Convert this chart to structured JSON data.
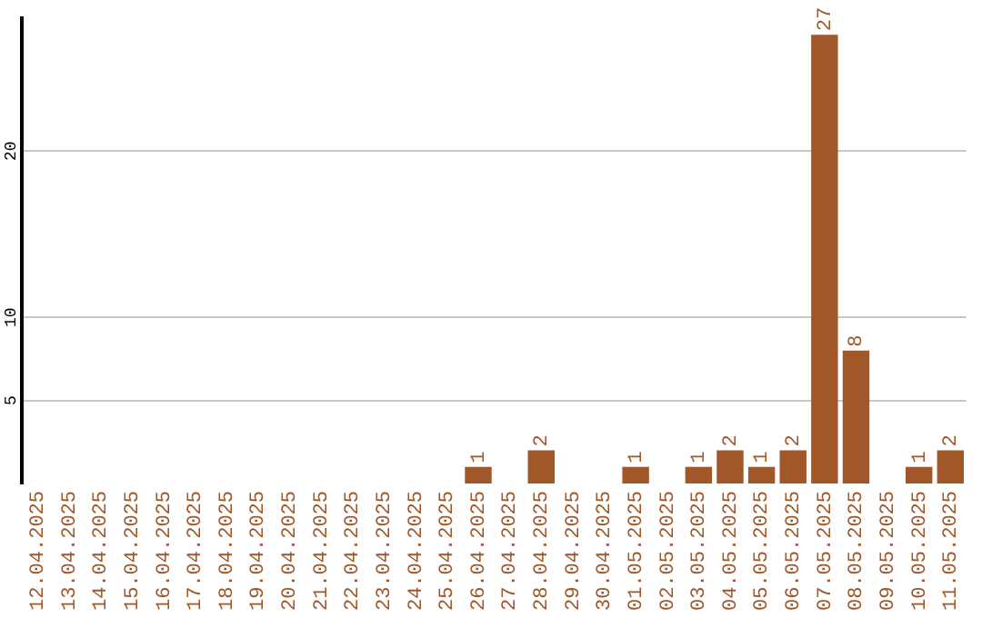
{
  "chart_data": {
    "type": "bar",
    "categories": [
      "12.04.2025",
      "13.04.2025",
      "14.04.2025",
      "15.04.2025",
      "16.04.2025",
      "17.04.2025",
      "18.04.2025",
      "19.04.2025",
      "20.04.2025",
      "21.04.2025",
      "22.04.2025",
      "23.04.2025",
      "24.04.2025",
      "25.04.2025",
      "26.04.2025",
      "27.04.2025",
      "28.04.2025",
      "29.04.2025",
      "30.04.2025",
      "01.05.2025",
      "02.05.2025",
      "03.05.2025",
      "04.05.2025",
      "05.05.2025",
      "06.05.2025",
      "07.05.2025",
      "08.05.2025",
      "09.05.2025",
      "10.05.2025",
      "11.05.2025"
    ],
    "values": [
      0,
      0,
      0,
      0,
      0,
      0,
      0,
      0,
      0,
      0,
      0,
      0,
      0,
      0,
      1,
      0,
      2,
      0,
      0,
      1,
      0,
      1,
      2,
      1,
      2,
      27,
      8,
      0,
      1,
      2
    ],
    "value_labels": [
      null,
      null,
      null,
      null,
      null,
      null,
      null,
      null,
      null,
      null,
      null,
      null,
      null,
      null,
      "1",
      null,
      "2",
      null,
      null,
      "1",
      null,
      "1",
      "2",
      "1",
      "2",
      "27",
      "8",
      null,
      "1",
      "2"
    ],
    "color": "#a0572a",
    "ylim": [
      0,
      28
    ],
    "yticks": [
      5,
      10,
      20
    ],
    "grid": "y"
  }
}
